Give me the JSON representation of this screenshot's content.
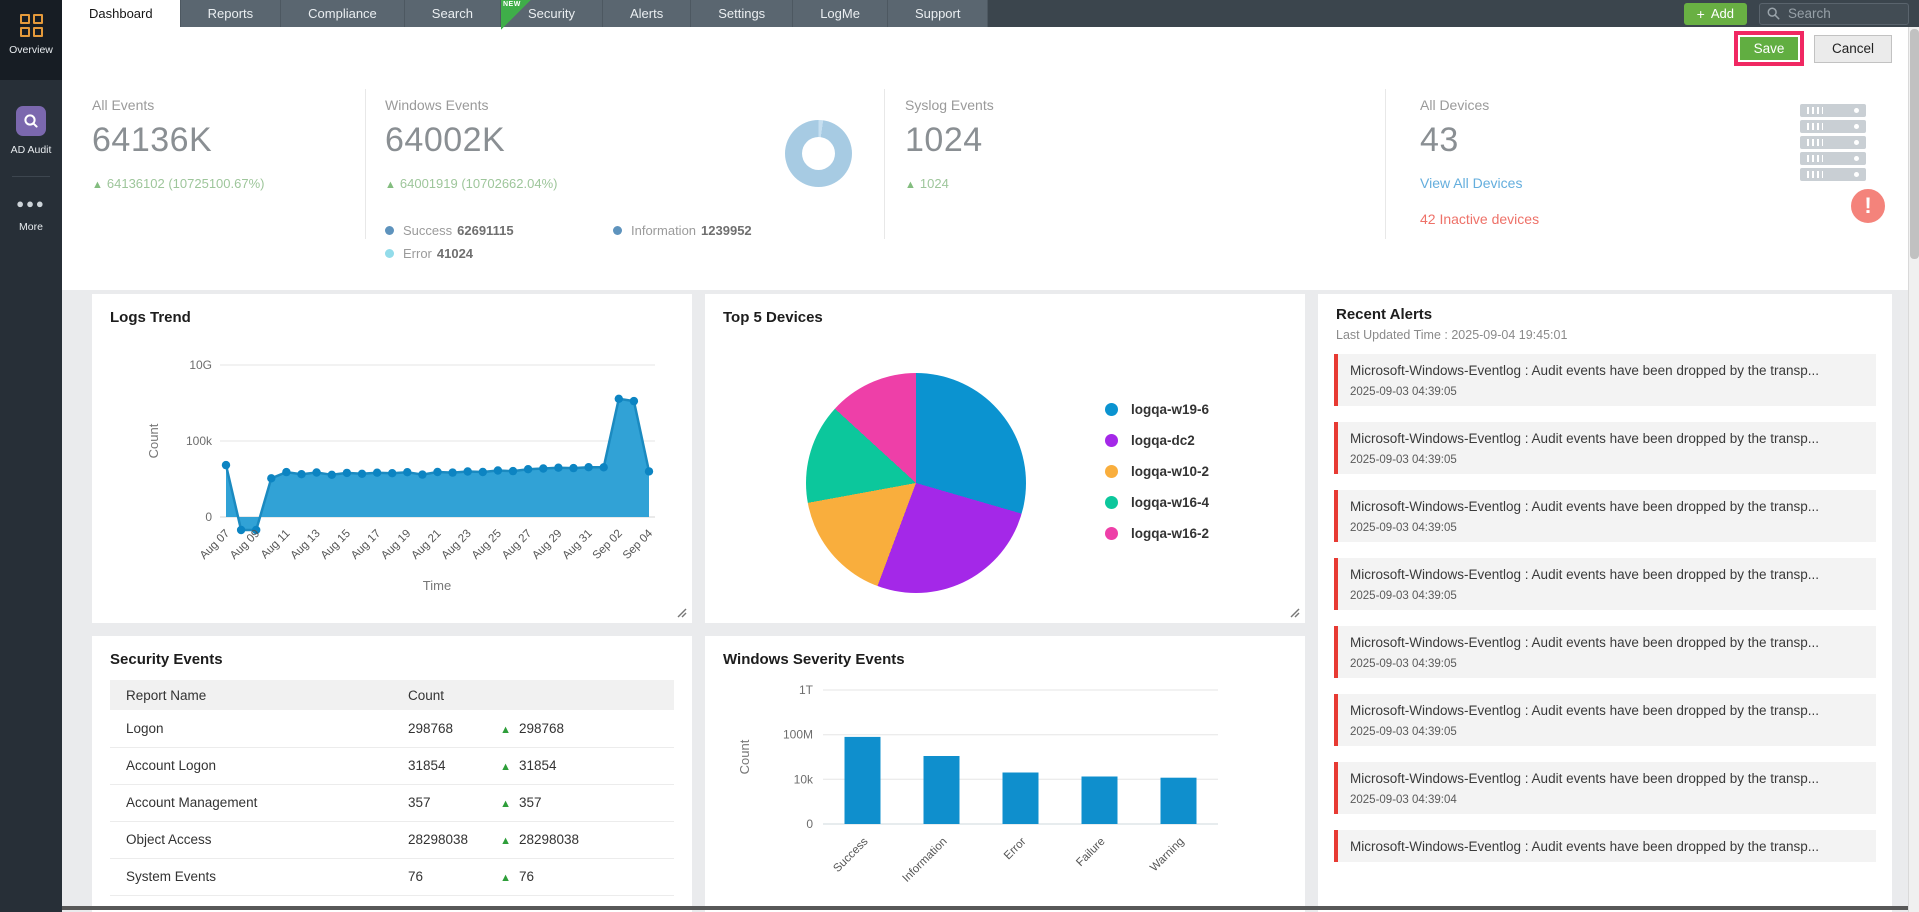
{
  "sidebar": {
    "items": [
      {
        "label": "Overview",
        "active": true
      },
      {
        "label": "AD Audit",
        "active": false
      },
      {
        "label": "More",
        "active": false
      }
    ]
  },
  "nav": {
    "tabs": [
      {
        "label": "Dashboard",
        "active": true
      },
      {
        "label": "Reports"
      },
      {
        "label": "Compliance"
      },
      {
        "label": "Search"
      },
      {
        "label": "Security",
        "badge": "NEW"
      },
      {
        "label": "Alerts"
      },
      {
        "label": "Settings"
      },
      {
        "label": "LogMe"
      },
      {
        "label": "Support"
      }
    ],
    "add_button": {
      "plus": "+",
      "label": "Add"
    },
    "search_placeholder": "Search"
  },
  "actions": {
    "save": "Save",
    "cancel": "Cancel"
  },
  "stats": {
    "all_events": {
      "label": "All Events",
      "value": "64136K",
      "delta": "64136102 (10725100.67%)"
    },
    "windows_events": {
      "label": "Windows Events",
      "value": "64002K",
      "delta": "64001919 (10702662.04%)",
      "breakdown": [
        {
          "label": "Success",
          "value": "62691115",
          "color": "#5e93bd"
        },
        {
          "label": "Error",
          "value": "41024",
          "color": "#93dcea"
        },
        {
          "label": "Information",
          "value": "1239952",
          "color": "#5e93bd"
        }
      ]
    },
    "syslog_events": {
      "label": "Syslog Events",
      "value": "1024",
      "delta": "1024"
    },
    "all_devices": {
      "label": "All Devices",
      "value": "43",
      "link": "View All Devices",
      "inactive": "42 Inactive devices",
      "badge": "!"
    }
  },
  "chart_data": [
    {
      "id": "logs_trend",
      "type": "area",
      "title": "Logs Trend",
      "xlabel": "Time",
      "ylabel": "Count",
      "scale": "log",
      "yticks": [
        "0",
        "100k",
        "10G"
      ],
      "x_tick_labels": [
        "Aug 07",
        "Aug 09",
        "Aug 11",
        "Aug 13",
        "Aug 15",
        "Aug 17",
        "Aug 19",
        "Aug 21",
        "Aug 23",
        "Aug 25",
        "Aug 27",
        "Aug 29",
        "Aug 31",
        "Sep 02",
        "Sep 04"
      ],
      "values": [
        2600,
        0,
        0,
        350,
        900,
        650,
        850,
        600,
        800,
        700,
        820,
        760,
        880,
        620,
        920,
        840,
        980,
        920,
        1150,
        1050,
        1400,
        1550,
        1750,
        1650,
        1900,
        1850,
        60000000,
        42000000,
        1000
      ],
      "line_color": "#1b8ac0",
      "fill_color": "#31a2d6",
      "dot_color": "#0c84c2"
    },
    {
      "id": "top5_devices",
      "type": "pie",
      "title": "Top 5 Devices",
      "slices": [
        {
          "label": "logqa-w19-6",
          "percent": 29.5,
          "color": "#0b93d0"
        },
        {
          "label": "logqa-dc2",
          "percent": 26.2,
          "color": "#a428e8"
        },
        {
          "label": "logqa-w10-2",
          "percent": 16.4,
          "color": "#f9ae3d"
        },
        {
          "label": "logqa-w16-4",
          "percent": 14.7,
          "color": "#0cc79c"
        },
        {
          "label": "logqa-w16-2",
          "percent": 13.2,
          "color": "#ee3fa8"
        }
      ]
    },
    {
      "id": "windows_severity",
      "type": "bar",
      "title": "Windows Severity Events",
      "ylabel": "Count",
      "scale": "log",
      "yticks": [
        "0",
        "10k",
        "100M",
        "1T"
      ],
      "categories": [
        "Success",
        "Information",
        "Error",
        "Failure",
        "Warning"
      ],
      "values": [
        62691115,
        1239952,
        41024,
        18000,
        14000
      ],
      "bar_color": "#0f8fcd"
    }
  ],
  "security_events": {
    "title": "Security Events",
    "columns": [
      "Report Name",
      "Count"
    ],
    "rows": [
      {
        "name": "Logon",
        "count": "298768",
        "delta": "298768"
      },
      {
        "name": "Account Logon",
        "count": "31854",
        "delta": "31854"
      },
      {
        "name": "Account Management",
        "count": "357",
        "delta": "357"
      },
      {
        "name": "Object Access",
        "count": "28298038",
        "delta": "28298038"
      },
      {
        "name": "System Events",
        "count": "76",
        "delta": "76"
      }
    ]
  },
  "recent_alerts": {
    "title": "Recent Alerts",
    "updated": "Last Updated Time : 2025-09-04 19:45:01",
    "items": [
      {
        "message": "Microsoft-Windows-Eventlog : Audit events have been dropped by the transp...",
        "time": "2025-09-03 04:39:05"
      },
      {
        "message": "Microsoft-Windows-Eventlog : Audit events have been dropped by the transp...",
        "time": "2025-09-03 04:39:05"
      },
      {
        "message": "Microsoft-Windows-Eventlog : Audit events have been dropped by the transp...",
        "time": "2025-09-03 04:39:05"
      },
      {
        "message": "Microsoft-Windows-Eventlog : Audit events have been dropped by the transp...",
        "time": "2025-09-03 04:39:05"
      },
      {
        "message": "Microsoft-Windows-Eventlog : Audit events have been dropped by the transp...",
        "time": "2025-09-03 04:39:05"
      },
      {
        "message": "Microsoft-Windows-Eventlog : Audit events have been dropped by the transp...",
        "time": "2025-09-03 04:39:05"
      },
      {
        "message": "Microsoft-Windows-Eventlog : Audit events have been dropped by the transp...",
        "time": "2025-09-03 04:39:04"
      },
      {
        "message": "Microsoft-Windows-Eventlog : Audit events have been dropped by the transp...",
        "time": ""
      }
    ]
  }
}
